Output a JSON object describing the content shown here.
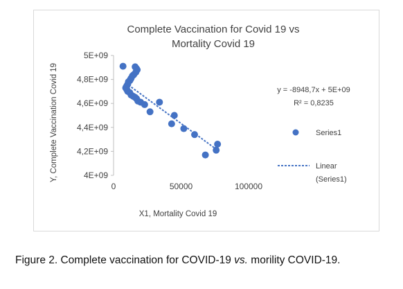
{
  "chart_data": {
    "type": "scatter",
    "title_line1": "Complete Vaccination for Covid 19  vs",
    "title_line2": "Mortality Covid 19",
    "xlabel": "X1, Mortality Covid 19",
    "ylabel": "Y, Complete Vaccination Covid 19",
    "xlim": [
      0,
      100000
    ],
    "ylim": [
      4000000000,
      5000000000
    ],
    "x_ticks": [
      "0",
      "50000",
      "100000"
    ],
    "y_ticks": [
      "4E+09",
      "4,2E+09",
      "4,4E+09",
      "4,6E+09",
      "4,8E+09",
      "5E+09"
    ],
    "series": [
      {
        "name": "Series1",
        "color": "#4472c4",
        "points": [
          [
            7000,
            4910000000
          ],
          [
            16000,
            4905000000
          ],
          [
            17000,
            4890000000
          ],
          [
            17500,
            4880000000
          ],
          [
            16500,
            4860000000
          ],
          [
            15000,
            4840000000
          ],
          [
            14000,
            4830000000
          ],
          [
            13000,
            4810000000
          ],
          [
            12500,
            4800000000
          ],
          [
            12000,
            4790000000
          ],
          [
            11000,
            4780000000
          ],
          [
            10500,
            4760000000
          ],
          [
            10000,
            4750000000
          ],
          [
            9500,
            4740000000
          ],
          [
            9000,
            4730000000
          ],
          [
            9800,
            4715000000
          ],
          [
            10500,
            4700000000
          ],
          [
            12000,
            4690000000
          ],
          [
            13000,
            4670000000
          ],
          [
            14500,
            4660000000
          ],
          [
            16000,
            4650000000
          ],
          [
            17000,
            4640000000
          ],
          [
            18000,
            4620000000
          ],
          [
            20000,
            4610000000
          ],
          [
            23000,
            4590000000
          ],
          [
            27000,
            4530000000
          ],
          [
            34000,
            4610000000
          ],
          [
            45000,
            4500000000
          ],
          [
            43000,
            4430000000
          ],
          [
            52000,
            4390000000
          ],
          [
            60000,
            4340000000
          ],
          [
            77000,
            4260000000
          ],
          [
            76000,
            4210000000
          ],
          [
            68000,
            4170000000
          ]
        ]
      }
    ],
    "trendline": {
      "name": "Linear (Series1)",
      "label_line1": "Linear",
      "label_line2": "(Series1)",
      "color": "#4472c4",
      "start": [
        9000,
        4770000000
      ],
      "end": [
        77000,
        4210000000
      ]
    },
    "equation": "y = -8948,7x + 5E+09",
    "r_squared": "R² = 0,8235",
    "legend_placement": "right",
    "grid": false
  },
  "caption": {
    "lead": "Figure 2.",
    "text_before_vs": " Complete vaccination for COVID-19 ",
    "vs": "vs.",
    "text_after_vs": " morility COVID-19."
  }
}
